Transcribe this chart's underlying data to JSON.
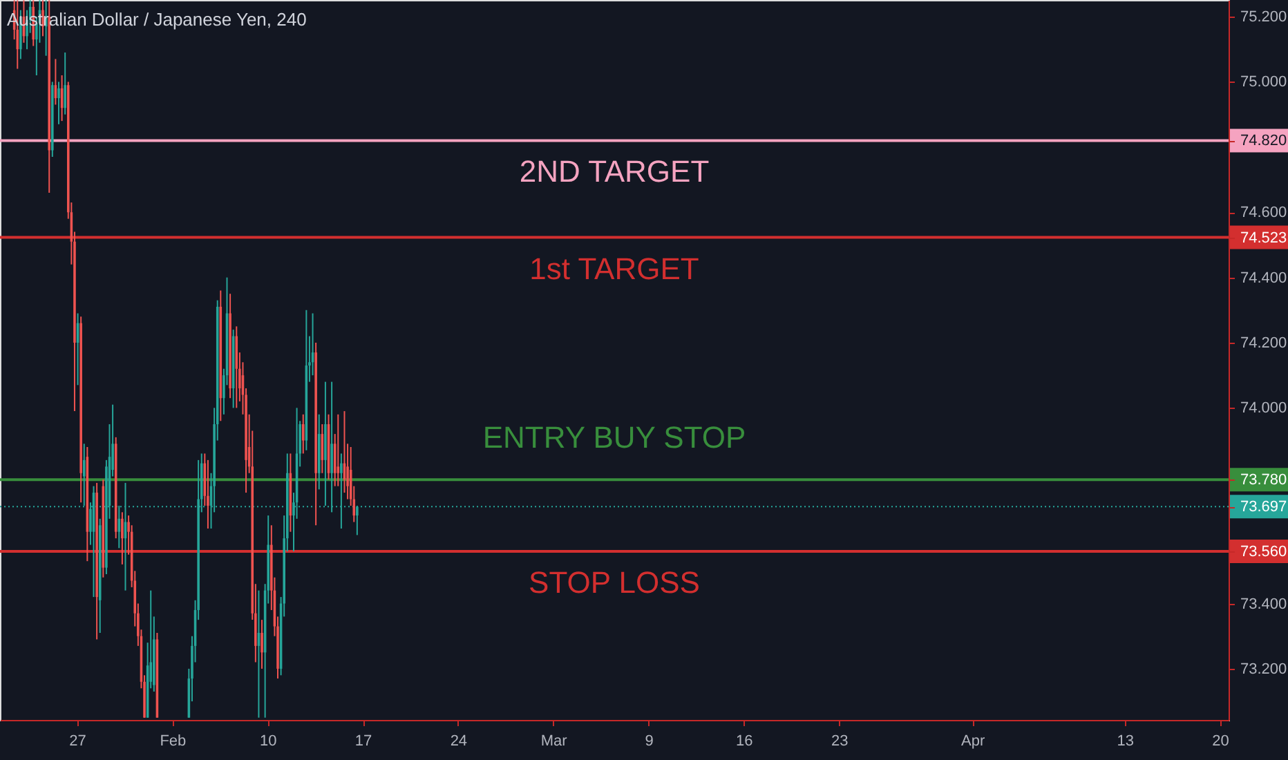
{
  "chart_data": {
    "type": "candlestick",
    "title": "Australian Dollar / Japanese Yen, 240",
    "categories": [
      null,
      null,
      null,
      null,
      null,
      null,
      null,
      null,
      null,
      null,
      null,
      null,
      null,
      null,
      null,
      null,
      null,
      null,
      null,
      null,
      null,
      null,
      null,
      null,
      "27",
      null,
      null,
      null,
      null,
      null,
      null,
      null,
      null,
      null,
      null,
      null,
      null,
      null,
      null,
      null,
      null,
      null,
      null,
      null,
      null,
      null,
      null,
      null,
      null,
      null,
      null,
      null,
      null,
      null,
      "Feb",
      null,
      null,
      null,
      null,
      null,
      null,
      null,
      null,
      null,
      null,
      null,
      null,
      null,
      null,
      null,
      null,
      null,
      null,
      null,
      null,
      null,
      null,
      null,
      null,
      null,
      null,
      null,
      null,
      null,
      "10",
      null,
      null,
      null,
      null,
      null,
      null,
      null,
      null,
      null,
      null,
      null,
      null,
      null,
      null,
      null,
      null,
      null,
      null,
      null,
      null,
      null,
      null,
      null,
      null,
      null,
      null,
      null,
      null,
      null,
      "17",
      null,
      null,
      null,
      null,
      null,
      null,
      null,
      null,
      null,
      null,
      null,
      null,
      null,
      null,
      null,
      null,
      null,
      null,
      null,
      null,
      null,
      null,
      null,
      null,
      null,
      null,
      null,
      null,
      null,
      "24",
      null,
      null,
      null,
      null,
      null,
      null,
      null,
      null,
      null,
      null,
      null,
      null,
      null,
      null,
      null,
      null,
      null,
      null,
      null,
      null,
      null,
      null,
      null,
      null,
      null,
      null,
      null,
      null,
      null,
      "Mar",
      null,
      null,
      null,
      null,
      null,
      null,
      null,
      null,
      null,
      null,
      null,
      null,
      null,
      null,
      null,
      null,
      null,
      null,
      null,
      null,
      null,
      null,
      null,
      null,
      null,
      null,
      null,
      null,
      null,
      "9",
      null,
      null,
      null,
      null,
      null,
      null,
      null,
      null,
      null,
      null,
      null,
      null,
      null,
      null,
      null,
      null,
      null,
      null,
      null,
      null,
      null,
      null,
      null,
      null,
      null,
      null,
      null,
      null,
      null,
      "16",
      null,
      null,
      null,
      null,
      null,
      null,
      null,
      null,
      null,
      null,
      null,
      null,
      null,
      null,
      null,
      null,
      null,
      null,
      null,
      null,
      null,
      null,
      null,
      null,
      null,
      null,
      null,
      null,
      null,
      "23",
      null,
      null,
      null,
      null,
      null,
      null,
      null,
      null,
      null,
      null,
      null,
      null,
      null,
      null,
      null,
      null,
      null,
      null,
      null,
      null,
      null,
      null,
      null,
      null,
      null,
      null,
      null,
      null,
      null,
      null,
      null,
      null,
      null,
      null,
      null,
      null,
      null,
      null,
      null,
      null,
      null,
      "Apr",
      null,
      null,
      null,
      null,
      null,
      null,
      null,
      null,
      null,
      null,
      null,
      null,
      null,
      null,
      null,
      null,
      null,
      null,
      null,
      null,
      null,
      null,
      null,
      null,
      null,
      null,
      null,
      null,
      null,
      null,
      null,
      null,
      null,
      null,
      null,
      null,
      null,
      null,
      null,
      null,
      null,
      null,
      null,
      null,
      null,
      null,
      null,
      "13",
      null,
      null,
      null,
      null,
      null,
      null,
      null,
      null,
      null,
      null,
      null,
      null,
      null,
      null,
      null,
      null,
      null,
      null,
      null,
      null,
      null,
      null,
      null,
      null,
      null,
      null,
      null,
      null,
      null,
      "20",
      null,
      null
    ],
    "ohlc": [
      null,
      null,
      null,
      null,
      [
        75.22,
        75.25,
        75.13,
        75.16
      ],
      [
        75.16,
        75.25,
        75.04,
        75.1
      ],
      [
        75.1,
        75.22,
        75.07,
        75.2
      ],
      [
        75.2,
        75.25,
        75.12,
        75.14
      ],
      [
        75.14,
        75.22,
        75.1,
        75.19
      ],
      [
        75.19,
        75.25,
        75.15,
        75.23
      ],
      [
        75.23,
        75.25,
        75.11,
        75.13
      ],
      [
        75.13,
        75.2,
        75.02,
        75.18
      ],
      [
        75.18,
        75.25,
        75.12,
        75.22
      ],
      [
        75.22,
        75.25,
        75.14,
        75.17
      ],
      [
        75.17,
        75.25,
        75.08,
        75.2
      ],
      [
        75.2,
        75.25,
        74.66,
        74.79
      ],
      [
        74.79,
        75.0,
        74.77,
        74.99
      ],
      [
        74.99,
        75.07,
        74.93,
        74.95
      ],
      [
        74.95,
        75.0,
        74.87,
        74.98
      ],
      [
        74.98,
        75.02,
        74.88,
        74.92
      ],
      [
        74.92,
        75.09,
        74.9,
        74.99
      ],
      [
        74.99,
        75.0,
        74.58,
        74.6
      ],
      [
        74.6,
        74.63,
        74.44,
        74.51
      ],
      [
        74.51,
        74.54,
        73.99,
        74.2
      ],
      [
        74.2,
        74.29,
        74.07,
        74.26
      ],
      [
        74.26,
        74.28,
        73.71,
        73.8
      ],
      [
        73.79,
        73.89,
        73.7,
        73.84
      ],
      [
        73.85,
        73.88,
        73.53,
        73.62
      ],
      [
        73.62,
        73.71,
        73.58,
        73.69
      ],
      [
        73.62,
        73.76,
        73.42,
        73.74
      ],
      [
        73.74,
        73.77,
        73.29,
        73.42
      ],
      [
        73.41,
        73.66,
        73.31,
        73.64
      ],
      [
        73.76,
        73.78,
        73.48,
        73.51
      ],
      [
        73.51,
        73.84,
        73.49,
        73.82
      ],
      [
        73.7,
        73.95,
        73.66,
        73.85
      ],
      [
        73.81,
        74.01,
        73.79,
        73.89
      ],
      [
        73.89,
        73.91,
        73.6,
        73.62
      ],
      [
        73.62,
        73.7,
        73.57,
        73.66
      ],
      [
        73.66,
        73.68,
        73.52,
        73.6
      ],
      [
        73.6,
        73.77,
        73.44,
        73.65
      ],
      [
        73.65,
        73.67,
        73.55,
        73.62
      ],
      [
        73.62,
        73.64,
        73.45,
        73.47
      ],
      [
        73.47,
        73.5,
        73.33,
        73.37
      ],
      [
        73.37,
        73.4,
        73.27,
        73.3
      ],
      [
        73.3,
        73.32,
        73.14,
        73.16
      ],
      [
        73.16,
        73.18,
        73.05,
        73.05
      ],
      [
        73.05,
        73.28,
        73.05,
        73.21
      ],
      [
        73.16,
        73.44,
        73.14,
        73.22
      ],
      [
        73.15,
        73.36,
        73.13,
        73.29
      ],
      [
        73.29,
        73.31,
        73.05,
        73.05
      ],
      null,
      null,
      null,
      null,
      null,
      null,
      null,
      null,
      null,
      [
        73.05,
        73.2,
        73.05,
        73.17
      ],
      [
        73.17,
        73.3,
        73.1,
        73.27
      ],
      [
        73.27,
        73.41,
        73.22,
        73.38
      ],
      [
        73.38,
        73.84,
        73.35,
        73.72
      ],
      [
        73.72,
        73.86,
        73.68,
        73.83
      ],
      [
        73.83,
        73.86,
        73.7,
        73.73
      ],
      [
        73.73,
        73.84,
        73.63,
        73.7
      ],
      [
        73.7,
        73.8,
        73.63,
        73.76
      ],
      [
        73.76,
        74.0,
        73.68,
        73.95
      ],
      [
        73.95,
        74.33,
        73.9,
        74.31
      ],
      [
        74.31,
        74.36,
        73.96,
        74.03
      ],
      [
        74.03,
        74.12,
        73.98,
        74.1
      ],
      [
        74.1,
        74.4,
        74.07,
        74.29
      ],
      [
        74.29,
        74.35,
        74.03,
        74.06
      ],
      [
        74.06,
        74.24,
        74.0,
        74.22
      ],
      [
        74.22,
        74.25,
        74.0,
        74.12
      ],
      [
        74.12,
        74.17,
        74.02,
        74.06
      ],
      [
        74.1,
        74.14,
        73.98,
        74.04
      ],
      [
        74.04,
        74.06,
        73.74,
        73.84
      ],
      [
        73.88,
        73.98,
        73.8,
        73.82
      ],
      [
        73.82,
        73.93,
        73.35,
        73.37
      ],
      [
        73.37,
        73.46,
        73.22,
        73.27
      ],
      [
        73.27,
        73.44,
        73.05,
        73.31
      ],
      [
        73.31,
        73.35,
        73.2,
        73.25
      ],
      [
        73.25,
        73.46,
        73.05,
        73.44
      ],
      [
        73.44,
        73.67,
        73.4,
        73.58
      ],
      [
        73.58,
        73.64,
        73.38,
        73.44
      ],
      [
        73.44,
        73.48,
        73.3,
        73.33
      ],
      [
        73.33,
        73.36,
        73.17,
        73.2
      ],
      [
        73.2,
        73.42,
        73.18,
        73.4
      ],
      [
        73.4,
        73.67,
        73.36,
        73.6
      ],
      [
        73.6,
        73.86,
        73.56,
        73.8
      ],
      [
        73.8,
        73.86,
        73.62,
        73.67
      ],
      [
        73.67,
        73.74,
        73.56,
        73.71
      ],
      [
        73.71,
        74.0,
        73.66,
        73.86
      ],
      [
        73.86,
        73.96,
        73.82,
        73.95
      ],
      [
        73.95,
        73.98,
        73.86,
        73.9
      ],
      [
        73.9,
        74.3,
        73.87,
        74.13
      ],
      [
        74.13,
        74.22,
        74.08,
        74.14
      ],
      [
        74.14,
        74.29,
        74.1,
        74.17
      ],
      [
        74.17,
        74.2,
        73.64,
        73.8
      ],
      [
        73.8,
        73.98,
        73.75,
        73.92
      ],
      [
        73.92,
        73.95,
        73.8,
        73.84
      ],
      [
        73.84,
        74.08,
        73.7,
        73.95
      ],
      [
        73.95,
        73.98,
        73.78,
        73.8
      ],
      [
        73.8,
        74.08,
        73.68,
        73.89
      ],
      [
        73.89,
        73.92,
        73.76,
        73.8
      ],
      [
        73.82,
        73.98,
        73.76,
        73.8
      ],
      [
        73.8,
        73.86,
        73.63,
        73.83
      ],
      [
        73.83,
        73.99,
        73.74,
        73.78
      ],
      [
        73.82,
        73.89,
        73.72,
        73.76
      ],
      [
        73.81,
        73.88,
        73.7,
        73.72
      ],
      [
        73.72,
        73.76,
        73.65,
        73.67
      ],
      [
        73.67,
        73.7,
        73.61,
        73.697
      ],
      null,
      null,
      null,
      null,
      null,
      null,
      null,
      null,
      null,
      null,
      null,
      null,
      null,
      null,
      null,
      null,
      null,
      null,
      null,
      null,
      null,
      null,
      null,
      null,
      null,
      null,
      null,
      null,
      null,
      null,
      null,
      null,
      null,
      null,
      null,
      null,
      null,
      null,
      null,
      null,
      null,
      null,
      null,
      null,
      null,
      null,
      null,
      null,
      null,
      null,
      null,
      null,
      null,
      null,
      null,
      null,
      null,
      null,
      null,
      null,
      null,
      null,
      null,
      null,
      null,
      null,
      null,
      null,
      null,
      null,
      null,
      null,
      null,
      null,
      null,
      null,
      null,
      null,
      null,
      null,
      null,
      null,
      null,
      null,
      null,
      null,
      null,
      null,
      null,
      null,
      null,
      null,
      null,
      null,
      null,
      null,
      null,
      null,
      null,
      null,
      null,
      null,
      null,
      null,
      null,
      null,
      null,
      null,
      null,
      null,
      null,
      null,
      null,
      null,
      null,
      null,
      null,
      null,
      null,
      null,
      null,
      null,
      null,
      null,
      null,
      null,
      null,
      null,
      null,
      null,
      null,
      null,
      null,
      null,
      null,
      null,
      null,
      null,
      null,
      null,
      null,
      null,
      null,
      null,
      null,
      null,
      null,
      null,
      null,
      null,
      null,
      null,
      null,
      null,
      null,
      null,
      null,
      null,
      null,
      null,
      null,
      null,
      null,
      null,
      null,
      null,
      null,
      null,
      null,
      null,
      null,
      null,
      null,
      null,
      null,
      null,
      null,
      null,
      null,
      null,
      null,
      null,
      null,
      null,
      null,
      null,
      null,
      null,
      null,
      null,
      null,
      null,
      null,
      null,
      null,
      null,
      null,
      null,
      null,
      null,
      null,
      null,
      null,
      null,
      null,
      null,
      null,
      null,
      null,
      null,
      null,
      null,
      null,
      null,
      null,
      null,
      null,
      null,
      null,
      null,
      null,
      null,
      null,
      null,
      null,
      null,
      null,
      null,
      null,
      null,
      null,
      null,
      null,
      null,
      null,
      null,
      null,
      null,
      null,
      null,
      null,
      null,
      null,
      null,
      null,
      null,
      null,
      null,
      null,
      null,
      null,
      null,
      null,
      null,
      null,
      null,
      null,
      null,
      null,
      null,
      null,
      null,
      null,
      null,
      null,
      null,
      null,
      null,
      null,
      null,
      null,
      null,
      null,
      null
    ],
    "colors": [
      null,
      null,
      null,
      null,
      "#ef5350",
      "#ef5350",
      "#26a69a",
      "#ef5350",
      "#26a69a",
      "#26a69a",
      "#ef5350",
      "#26a69a",
      "#26a69a",
      "#ef5350",
      "#26a69a",
      "#ef5350",
      "#26a69a",
      "#ef5350",
      "#26a69a",
      "#ef5350",
      "#26a69a",
      "#ef5350",
      "#ef5350",
      "#ef5350",
      "#26a69a",
      "#ef5350",
      "#26a69a",
      "#ef5350",
      "#26a69a",
      "#26a69a",
      "#ef5350",
      "#26a69a",
      "#ef5350",
      "#26a69a",
      "#26a69a",
      "#26a69a",
      "#ef5350",
      "#26a69a",
      "#ef5350",
      "#26a69a",
      "#ef5350",
      "#ef5350",
      "#ef5350",
      "#ef5350",
      "#ef5350",
      "#ef5350",
      "#26a69a",
      "#26a69a",
      "#26a69a",
      "#ef5350",
      null,
      null,
      null,
      null,
      null,
      null,
      null,
      null,
      null,
      "#26a69a",
      "#26a69a",
      "#26a69a",
      "#26a69a",
      "#26a69a",
      "#ef5350",
      "#ef5350",
      "#26a69a",
      "#26a69a",
      "#26a69a",
      "#ef5350",
      "#26a69a",
      "#26a69a",
      "#ef5350",
      "#26a69a",
      "#ef5350",
      "#ef5350",
      "#ef5350",
      "#ef5350",
      "#ef5350",
      "#ef5350",
      "#ef5350",
      "#26a69a",
      "#ef5350",
      "#26a69a",
      "#26a69a",
      "#ef5350",
      "#ef5350",
      "#ef5350",
      "#26a69a",
      "#26a69a",
      "#26a69a",
      "#ef5350",
      "#26a69a",
      "#26a69a",
      "#26a69a",
      "#ef5350",
      "#26a69a",
      "#26a69a",
      "#26a69a",
      "#ef5350",
      "#26a69a",
      "#ef5350",
      "#26a69a",
      "#ef5350",
      "#26a69a",
      "#ef5350",
      "#ef5350",
      "#26a69a",
      "#ef5350",
      "#ef5350",
      "#ef5350",
      "#ef5350",
      "#26a69a",
      null,
      null,
      null,
      null,
      null,
      null,
      null,
      null,
      null,
      null,
      null,
      null,
      null,
      null,
      null,
      null,
      null,
      null,
      null,
      null,
      null,
      null,
      null,
      null,
      null,
      null,
      null,
      null,
      null,
      null,
      null,
      null,
      null,
      null,
      null,
      null,
      null,
      null,
      null,
      null,
      null,
      null,
      null,
      null,
      null,
      null,
      null,
      null,
      null,
      null,
      null,
      null,
      null,
      null,
      null,
      null,
      null,
      null,
      null,
      null,
      null,
      null,
      null,
      null,
      null,
      null,
      null,
      null,
      null,
      null,
      null,
      null,
      null,
      null,
      null,
      null,
      null,
      null,
      null,
      null,
      null,
      null,
      null,
      null,
      null,
      null,
      null,
      null,
      null,
      null,
      null,
      null,
      null,
      null,
      null,
      null,
      null,
      null,
      null,
      null,
      null,
      null,
      null,
      null,
      null,
      null,
      null,
      null,
      null,
      null,
      null,
      null,
      null,
      null,
      null,
      null,
      null,
      null,
      null,
      null,
      null,
      null,
      null,
      null,
      null,
      null,
      null,
      null,
      null,
      null,
      null,
      null,
      null,
      null,
      null,
      null,
      null,
      null,
      null,
      null,
      null,
      null,
      null,
      null,
      null,
      null,
      null,
      null,
      null,
      null,
      null,
      null,
      null,
      null,
      null,
      null,
      null,
      null,
      null,
      null,
      null,
      null,
      null,
      null,
      null,
      null,
      null,
      null,
      null,
      null,
      null,
      null,
      null,
      null,
      null,
      null,
      null,
      null,
      null,
      null,
      null,
      null,
      null,
      null,
      null,
      null,
      null,
      null,
      null,
      null,
      null,
      null,
      null,
      null,
      null,
      null,
      null,
      null,
      null,
      null,
      null,
      null,
      null,
      null,
      null,
      null,
      null,
      null,
      null,
      null,
      null,
      null,
      null,
      null,
      null,
      null,
      null,
      null,
      null,
      null,
      null,
      null,
      null,
      null,
      null,
      null,
      null,
      null,
      null,
      null,
      null,
      null,
      null,
      null,
      null,
      null,
      null,
      null,
      null,
      null,
      null,
      null,
      null,
      null,
      null,
      null,
      null,
      null,
      null,
      null,
      null,
      null,
      null,
      null,
      null,
      null,
      null,
      null,
      null,
      null,
      null,
      null,
      null,
      null,
      null,
      null,
      null,
      null,
      null,
      null,
      null,
      null,
      null,
      null
    ],
    "ylim": [
      73.043,
      75.251
    ],
    "yticks": [
      {
        "value": 73.2,
        "label": "73.200"
      },
      {
        "value": 73.4,
        "label": "73.400"
      },
      {
        "value": 73.56,
        "label": "73.560"
      },
      {
        "value": 73.697,
        "label": "73.697"
      },
      {
        "value": 73.78,
        "label": "73.780"
      },
      {
        "value": 74.0,
        "label": "74.000"
      },
      {
        "value": 74.2,
        "label": "74.200"
      },
      {
        "value": 74.4,
        "label": "74.400"
      },
      {
        "value": 74.523,
        "label": "74.523"
      },
      {
        "value": 74.6,
        "label": "74.600"
      },
      {
        "value": 74.82,
        "label": "74.820"
      },
      {
        "value": 75.0,
        "label": "75.000"
      },
      {
        "value": 75.2,
        "label": "75.200"
      }
    ],
    "ref_lines": [
      {
        "axis": "y",
        "value": 74.82,
        "label": "2ND TARGET",
        "color": "#f5a3c0"
      },
      {
        "axis": "y",
        "value": 74.523,
        "label": "1st TARGET",
        "color": "#d32f2f"
      },
      {
        "axis": "y",
        "value": 73.78,
        "label": "ENTRY BUY STOP",
        "color": "#388e3c"
      },
      {
        "axis": "y",
        "value": 73.697,
        "color": "#26a69a",
        "line_style": "dotted"
      },
      {
        "axis": "y",
        "value": 73.56,
        "label": "STOP LOSS",
        "color": "#d32f2f"
      }
    ]
  }
}
